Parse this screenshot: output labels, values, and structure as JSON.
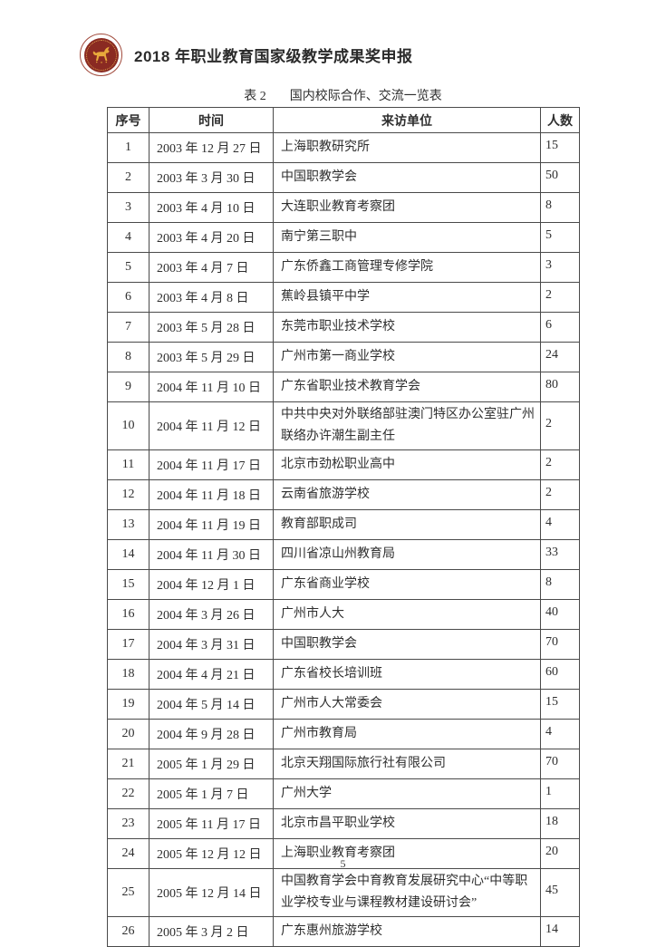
{
  "header": {
    "title": "2018 年职业教育国家级教学成果奖申报",
    "logo": {
      "description": "round school seal with golden horse emblem",
      "ring_color": "#a14a3c",
      "circle_color": "#8a2a22",
      "emblem_color": "#e8a93b"
    }
  },
  "caption": {
    "label": "表 2",
    "title": "国内校际合作、交流一览表"
  },
  "table": {
    "columns": [
      "序号",
      "时间",
      "来访单位",
      "人数"
    ],
    "rows": [
      [
        "1",
        "2003 年 12 月 27 日",
        "上海职教研究所",
        "15"
      ],
      [
        "2",
        "2003 年 3 月 30 日",
        "中国职教学会",
        "50"
      ],
      [
        "3",
        "2003 年 4 月 10 日",
        "大连职业教育考察团",
        "8"
      ],
      [
        "4",
        "2003 年 4 月 20 日",
        "南宁第三职中",
        "5"
      ],
      [
        "5",
        "2003 年 4 月 7 日",
        "广东侨鑫工商管理专修学院",
        "3"
      ],
      [
        "6",
        "2003 年 4 月 8 日",
        "蕉岭县镇平中学",
        "2"
      ],
      [
        "7",
        "2003 年 5 月 28 日",
        "东莞市职业技术学校",
        "6"
      ],
      [
        "8",
        "2003 年 5 月 29 日",
        "广州市第一商业学校",
        "24"
      ],
      [
        "9",
        "2004 年 11 月 10 日",
        "广东省职业技术教育学会",
        "80"
      ],
      [
        "10",
        "2004 年 11 月 12 日",
        "中共中央对外联络部驻澳门特区办公室驻广州联络办许潮生副主任",
        "2"
      ],
      [
        "11",
        "2004 年 11 月 17 日",
        "北京市劲松职业高中",
        "2"
      ],
      [
        "12",
        "2004 年 11 月 18 日",
        "云南省旅游学校",
        "2"
      ],
      [
        "13",
        "2004 年 11 月 19 日",
        "教育部职成司",
        "4"
      ],
      [
        "14",
        "2004 年 11 月 30 日",
        "四川省凉山州教育局",
        "33"
      ],
      [
        "15",
        "2004 年 12 月 1 日",
        "广东省商业学校",
        "8"
      ],
      [
        "16",
        "2004 年 3 月 26 日",
        "广州市人大",
        "40"
      ],
      [
        "17",
        "2004 年 3 月 31 日",
        "中国职教学会",
        "70"
      ],
      [
        "18",
        "2004 年 4 月 21 日",
        "广东省校长培训班",
        "60"
      ],
      [
        "19",
        "2004 年 5 月 14 日",
        "广州市人大常委会",
        "15"
      ],
      [
        "20",
        "2004 年 9 月 28 日",
        "广州市教育局",
        "4"
      ],
      [
        "21",
        "2005 年 1 月 29 日",
        "北京天翔国际旅行社有限公司",
        "70"
      ],
      [
        "22",
        "2005 年 1 月 7 日",
        "广州大学",
        "1"
      ],
      [
        "23",
        "2005 年 11 月 17 日",
        "北京市昌平职业学校",
        "18"
      ],
      [
        "24",
        "2005 年 12 月 12 日",
        "上海职业教育考察团",
        "20"
      ],
      [
        "25",
        "2005 年 12 月 14 日",
        "中国教育学会中育教育发展研究中心“中等职业学校专业与课程教材建设研讨会”",
        "45"
      ],
      [
        "26",
        "2005 年 3 月 2 日",
        "广东惠州旅游学校",
        "14"
      ]
    ]
  },
  "footer": {
    "page_number": "5"
  }
}
